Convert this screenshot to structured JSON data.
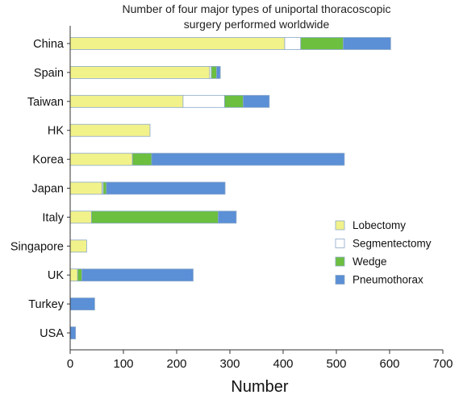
{
  "chart_data": {
    "type": "bar",
    "orientation": "horizontal",
    "stacked": true,
    "title_lines": [
      "Number of four major types of uniportal thoracoscopic",
      "surgery performed worldwide"
    ],
    "xlabel": "Number",
    "ylabel": "",
    "xlim": [
      0,
      700
    ],
    "xticks": [
      0,
      100,
      200,
      300,
      400,
      500,
      600,
      700
    ],
    "grid": false,
    "legend_position": "right",
    "categories": [
      "China",
      "Spain",
      "Taiwan",
      "HK",
      "Korea",
      "Japan",
      "Italy",
      "Singapore",
      "UK",
      "Turkey",
      "USA"
    ],
    "series": [
      {
        "name": "Lobectomy",
        "color": "#f2f28a",
        "values": [
          403,
          262,
          212,
          150,
          117,
          60,
          40,
          31,
          14,
          0,
          0
        ]
      },
      {
        "name": "Segmentectomy",
        "color": "#ffffff",
        "values": [
          30,
          3,
          78,
          0,
          0,
          2,
          0,
          0,
          0,
          0,
          0
        ]
      },
      {
        "name": "Wedge",
        "color": "#6cbf3f",
        "values": [
          80,
          10,
          35,
          0,
          36,
          6,
          238,
          0,
          8,
          0,
          0
        ]
      },
      {
        "name": "Pneumothorax",
        "color": "#5b8fd6",
        "values": [
          89,
          7,
          49,
          0,
          362,
          223,
          34,
          0,
          209,
          46,
          10
        ]
      }
    ]
  }
}
